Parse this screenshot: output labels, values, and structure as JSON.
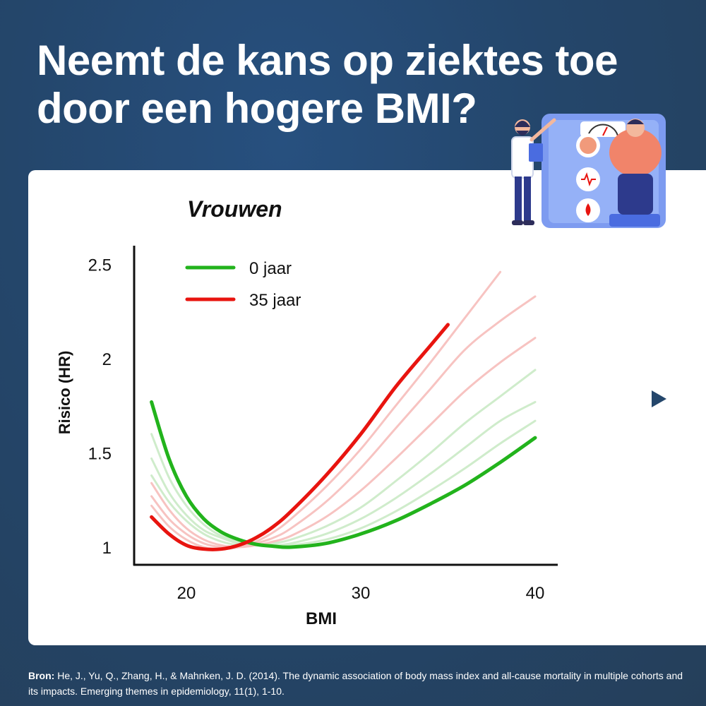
{
  "title": {
    "line1": "Neemt de kans op ziektes toe",
    "line2": "door een hogere BMI?"
  },
  "colors": {
    "green": "#22b31c",
    "red": "#e8140f",
    "red_light": "#f7c3c1",
    "green_light": "#cfeccb",
    "background": "#24466b"
  },
  "next_icon": "play-arrow-icon",
  "source": {
    "label": "Bron:",
    "text": "He, J., Yu, Q., Zhang, H., & Mahnken, J. D. (2014). The dynamic association of body mass index and all-cause mortality in multiple cohorts and its impacts. Emerging themes in epidemiology, 11(1), 1-10."
  },
  "chart_data": {
    "type": "line",
    "title": "Vrouwen",
    "xlabel": "BMI",
    "ylabel": "Risico (HR)",
    "xlim": [
      17,
      41.5
    ],
    "ylim": [
      0.9,
      2.6
    ],
    "x_ticks": [
      "20",
      "30",
      "40"
    ],
    "y_ticks": [
      "1",
      "1.5",
      "2",
      "2.5"
    ],
    "legend_position": "top-left",
    "series": [
      {
        "name": "0 jaar",
        "color": "#22b31c",
        "x": [
          18,
          19,
          20,
          21,
          22,
          23,
          24,
          25,
          26,
          28,
          30,
          32,
          34,
          36,
          38,
          40
        ],
        "y": [
          1.77,
          1.47,
          1.27,
          1.15,
          1.08,
          1.04,
          1.015,
          1.005,
          1.0,
          1.02,
          1.07,
          1.14,
          1.23,
          1.33,
          1.45,
          1.58
        ]
      },
      {
        "name": "35 jaar",
        "color": "#e8140f",
        "x": [
          18,
          19,
          20,
          21,
          22,
          23,
          24,
          25,
          26,
          28,
          30,
          32,
          34,
          35
        ],
        "y": [
          1.16,
          1.07,
          1.01,
          0.99,
          0.99,
          1.01,
          1.05,
          1.11,
          1.19,
          1.38,
          1.6,
          1.85,
          2.07,
          2.18
        ]
      }
    ],
    "intermediate_series": [
      {
        "color": "#cfeccb",
        "x": [
          18,
          19,
          20,
          21,
          22,
          23,
          24,
          25,
          26,
          28,
          30,
          32,
          34,
          36,
          38,
          40
        ],
        "y": [
          1.6,
          1.37,
          1.22,
          1.12,
          1.06,
          1.03,
          1.01,
          1.01,
          1.01,
          1.04,
          1.1,
          1.19,
          1.3,
          1.42,
          1.55,
          1.67
        ]
      },
      {
        "color": "#cfeccb",
        "x": [
          18,
          19,
          20,
          21,
          22,
          23,
          24,
          25,
          26,
          28,
          30,
          32,
          34,
          36,
          38,
          40
        ],
        "y": [
          1.47,
          1.29,
          1.17,
          1.09,
          1.05,
          1.02,
          1.01,
          1.01,
          1.02,
          1.07,
          1.15,
          1.26,
          1.39,
          1.53,
          1.67,
          1.77
        ]
      },
      {
        "color": "#cfeccb",
        "x": [
          18,
          19,
          20,
          21,
          22,
          23,
          24,
          25,
          26,
          28,
          30,
          32,
          34,
          36,
          38,
          40
        ],
        "y": [
          1.38,
          1.24,
          1.14,
          1.07,
          1.03,
          1.01,
          1.01,
          1.02,
          1.04,
          1.11,
          1.21,
          1.35,
          1.5,
          1.66,
          1.8,
          1.94
        ]
      },
      {
        "color": "#f7c3c1",
        "x": [
          18,
          19,
          20,
          21,
          22,
          23,
          24,
          25,
          26,
          28,
          30,
          32,
          34,
          36,
          38,
          40
        ],
        "y": [
          1.34,
          1.2,
          1.1,
          1.04,
          1.01,
          1.0,
          1.01,
          1.03,
          1.06,
          1.16,
          1.3,
          1.47,
          1.65,
          1.83,
          1.98,
          2.11
        ]
      },
      {
        "color": "#f7c3c1",
        "x": [
          18,
          19,
          20,
          21,
          22,
          23,
          24,
          25,
          26,
          28,
          30,
          32,
          34,
          36,
          38,
          40
        ],
        "y": [
          1.27,
          1.15,
          1.07,
          1.02,
          1.0,
          1.0,
          1.02,
          1.05,
          1.1,
          1.24,
          1.42,
          1.63,
          1.84,
          2.05,
          2.2,
          2.33
        ]
      },
      {
        "color": "#f7c3c1",
        "x": [
          18,
          19,
          20,
          21,
          22,
          23,
          24,
          25,
          26,
          28,
          30,
          32,
          34,
          36,
          38
        ],
        "y": [
          1.22,
          1.11,
          1.04,
          1.0,
          0.99,
          1.0,
          1.03,
          1.08,
          1.15,
          1.32,
          1.52,
          1.75,
          1.98,
          2.22,
          2.46
        ]
      }
    ]
  }
}
